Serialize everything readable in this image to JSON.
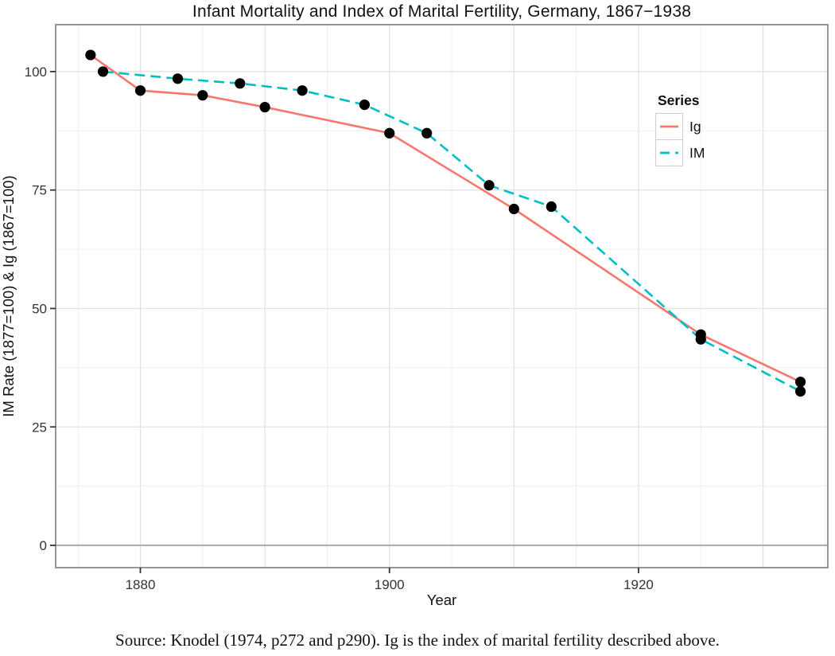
{
  "figure": {
    "title": "Infant Mortality and Index of Marital Fertility, Germany, 1867−1938",
    "caption": "Source: Knodel (1974, p272 and p290). Ig is the index of marital fertility described above."
  },
  "chart_data": {
    "type": "line",
    "title": "Infant Mortality and Index of Marital Fertility, Germany, 1867−1938",
    "xlabel": "Year",
    "ylabel": "IM Rate (1877=100) & Ig (1867=100)",
    "xlim": [
      1873.2,
      1935.2
    ],
    "ylim": [
      -4.7,
      109.9
    ],
    "x_ticks": [
      1880,
      1900,
      1920
    ],
    "y_ticks": [
      0,
      25,
      50,
      75,
      100
    ],
    "x_grid_major": [
      1880,
      1890,
      1900,
      1910,
      1920,
      1930
    ],
    "x_grid_minor": [
      1875,
      1885,
      1895,
      1905,
      1915,
      1925,
      1935
    ],
    "y_grid_major": [
      0,
      25,
      50,
      75,
      100
    ],
    "y_grid_minor": [
      12.5,
      37.5,
      62.5,
      87.5
    ],
    "reference_line_y": 0,
    "grid": true,
    "legend": {
      "title": "Series",
      "position": "inside top-right",
      "entries": [
        "Ig",
        "IM"
      ]
    },
    "point_color": "#000000",
    "series": [
      {
        "name": "Ig",
        "color": "#F8766D",
        "line_style": "solid",
        "x": [
          1876,
          1880,
          1885,
          1890,
          1900,
          1910,
          1925,
          1933
        ],
        "y": [
          103.5,
          96,
          95,
          92.5,
          87,
          71,
          44.5,
          34.5
        ]
      },
      {
        "name": "IM",
        "color": "#00BFC4",
        "line_style": "dashed",
        "x": [
          1877,
          1883,
          1888,
          1893,
          1898,
          1903,
          1908,
          1913,
          1925,
          1933
        ],
        "y": [
          100,
          98.5,
          97.5,
          96,
          93,
          87,
          76,
          71.5,
          43.5,
          32.5
        ]
      }
    ]
  },
  "colors": {
    "series_ig": "#F8766D",
    "series_im": "#00BFC4",
    "points": "#000000",
    "grid_major": "#e2e2e2",
    "grid_minor": "#efefef",
    "panel_border": "#8a8a8a",
    "zero_line": "#b0b0b0",
    "axis_text": "#333333"
  }
}
